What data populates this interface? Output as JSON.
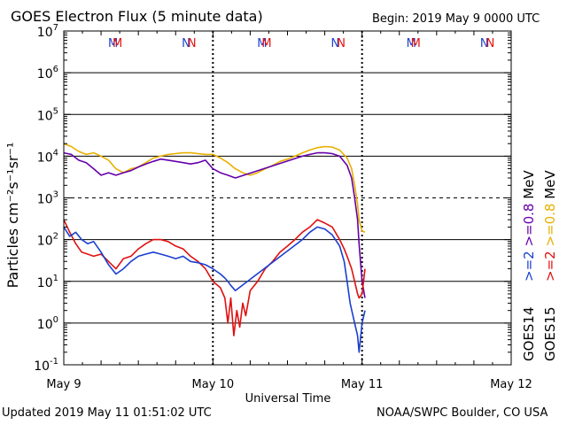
{
  "header": {
    "title": "GOES Electron Flux (5 minute data)",
    "begin": "Begin: 2019 May 9 0000 UTC"
  },
  "footer": {
    "updated": "Updated 2019 May 11 01:51:02 UTC",
    "credit": "NOAA/SWPC Boulder, CO USA"
  },
  "colors": {
    "goes14_08": "#6600aa",
    "goes15_08": "#e8b000",
    "goes14_2": "#1a3fd0",
    "goes15_2": "#e01010"
  },
  "chart_data": {
    "type": "line",
    "xlabel": "Universal Time",
    "ylabel": "Particles cm⁻²s⁻¹sr⁻¹",
    "x_unit": "days since 2019 May 9 0000 UTC",
    "xlim": [
      0,
      3.0
    ],
    "ylim": [
      0.1,
      10000000
    ],
    "yscale": "log",
    "grid": true,
    "x_ticks": [
      {
        "label": "May 9",
        "x": 0
      },
      {
        "label": "May 10",
        "x": 1
      },
      {
        "label": "May 11",
        "x": 2
      },
      {
        "label": "May 12",
        "x": 3
      }
    ],
    "y_ticks": [
      {
        "base": "10",
        "exp": "-1",
        "value": 0.1
      },
      {
        "base": "10",
        "exp": "0",
        "value": 1
      },
      {
        "base": "10",
        "exp": "1",
        "value": 10
      },
      {
        "base": "10",
        "exp": "2",
        "value": 100
      },
      {
        "base": "10",
        "exp": "3",
        "value": 1000
      },
      {
        "base": "10",
        "exp": "4",
        "value": 10000
      },
      {
        "base": "10",
        "exp": "5",
        "value": 100000
      },
      {
        "base": "10",
        "exp": "6",
        "value": 1000000
      },
      {
        "base": "10",
        "exp": "7",
        "value": 10000000
      }
    ],
    "threshold_line": 1000,
    "day_markers": [
      {
        "x": 0.33,
        "label": "M",
        "series": "GOES14"
      },
      {
        "x": 0.36,
        "label": "M",
        "series": "GOES15"
      },
      {
        "x": 0.82,
        "label": "N",
        "series": "GOES14"
      },
      {
        "x": 0.86,
        "label": "N",
        "series": "GOES15"
      },
      {
        "x": 1.33,
        "label": "M",
        "series": "GOES14"
      },
      {
        "x": 1.36,
        "label": "M",
        "series": "GOES15"
      },
      {
        "x": 1.82,
        "label": "N",
        "series": "GOES14"
      },
      {
        "x": 1.86,
        "label": "N",
        "series": "GOES15"
      },
      {
        "x": 2.33,
        "label": "M",
        "series": "GOES14"
      },
      {
        "x": 2.36,
        "label": "M",
        "series": "GOES15"
      },
      {
        "x": 2.82,
        "label": "N",
        "series": "GOES14"
      },
      {
        "x": 2.86,
        "label": "N",
        "series": "GOES15"
      }
    ],
    "legend": {
      "placement": "right",
      "groups": [
        {
          "sat": "GOES14",
          "items": [
            {
              "text": ">=2",
              "series": "goes14_2"
            },
            {
              "text": ">=0.8",
              "series": "goes14_08"
            }
          ]
        },
        {
          "sat": "GOES15",
          "items": [
            {
              "text": ">=2",
              "series": "goes15_2"
            },
            {
              "text": ">=0.8",
              "series": "goes15_08"
            }
          ]
        }
      ],
      "unit": "MeV"
    },
    "series": [
      {
        "name": "GOES15 >=0.8 MeV",
        "key": "goes15_08",
        "x": [
          0,
          0.05,
          0.1,
          0.15,
          0.2,
          0.25,
          0.3,
          0.35,
          0.4,
          0.45,
          0.5,
          0.55,
          0.6,
          0.65,
          0.7,
          0.75,
          0.8,
          0.85,
          0.9,
          0.95,
          1.0,
          1.05,
          1.1,
          1.15,
          1.2,
          1.25,
          1.3,
          1.35,
          1.4,
          1.45,
          1.5,
          1.55,
          1.6,
          1.65,
          1.7,
          1.75,
          1.8,
          1.85,
          1.9,
          1.93,
          1.95,
          1.97,
          1.98,
          2.0,
          2.02
        ],
        "y": [
          20000,
          17000,
          13000,
          11000,
          12000,
          10000,
          8000,
          5000,
          4000,
          5000,
          5500,
          7000,
          9000,
          10000,
          11000,
          11500,
          12000,
          12000,
          11500,
          11000,
          11000,
          9000,
          7000,
          5000,
          4000,
          3500,
          4000,
          5000,
          6000,
          7500,
          8500,
          10000,
          12000,
          14000,
          16000,
          17000,
          16500,
          14000,
          9000,
          5000,
          2000,
          700,
          300,
          160,
          150
        ]
      },
      {
        "name": "GOES14 >=0.8 MeV",
        "key": "goes14_08",
        "x": [
          0,
          0.05,
          0.1,
          0.15,
          0.2,
          0.25,
          0.3,
          0.35,
          0.4,
          0.45,
          0.5,
          0.55,
          0.6,
          0.65,
          0.7,
          0.75,
          0.8,
          0.85,
          0.9,
          0.95,
          1.0,
          1.05,
          1.1,
          1.15,
          1.6,
          1.65,
          1.7,
          1.75,
          1.8,
          1.85,
          1.9,
          1.93,
          1.95,
          1.97,
          1.98,
          2.0,
          2.02
        ],
        "y": [
          12000,
          11000,
          8000,
          7000,
          5000,
          3500,
          4000,
          3500,
          4000,
          4500,
          5500,
          6500,
          7500,
          8500,
          8000,
          7500,
          7000,
          6500,
          7000,
          8000,
          5000,
          4000,
          3500,
          3000,
          10000,
          11000,
          12000,
          12000,
          11500,
          10000,
          6000,
          3000,
          1000,
          300,
          80,
          10,
          4
        ]
      },
      {
        "name": "GOES15 >=2 MeV",
        "key": "goes15_2",
        "x": [
          0,
          0.04,
          0.08,
          0.12,
          0.16,
          0.2,
          0.25,
          0.3,
          0.35,
          0.4,
          0.45,
          0.5,
          0.55,
          0.6,
          0.65,
          0.7,
          0.75,
          0.8,
          0.85,
          0.9,
          0.95,
          1.0,
          1.05,
          1.08,
          1.1,
          1.12,
          1.14,
          1.16,
          1.18,
          1.2,
          1.22,
          1.25,
          1.3,
          1.35,
          1.4,
          1.45,
          1.5,
          1.55,
          1.6,
          1.65,
          1.7,
          1.75,
          1.8,
          1.85,
          1.88,
          1.9,
          1.93,
          1.95,
          1.97,
          1.98,
          2.0,
          2.02
        ],
        "y": [
          300,
          150,
          80,
          50,
          45,
          40,
          45,
          30,
          20,
          35,
          40,
          60,
          80,
          100,
          100,
          90,
          70,
          60,
          40,
          30,
          20,
          10,
          7,
          4,
          1,
          4,
          0.5,
          2,
          0.8,
          3,
          1.5,
          6,
          10,
          20,
          30,
          50,
          70,
          100,
          150,
          200,
          300,
          250,
          200,
          100,
          60,
          40,
          20,
          10,
          5,
          4,
          5,
          20
        ]
      },
      {
        "name": "GOES14 >=2 MeV",
        "key": "goes14_2",
        "x": [
          0,
          0.04,
          0.08,
          0.12,
          0.16,
          0.2,
          0.25,
          0.3,
          0.35,
          0.4,
          0.45,
          0.5,
          0.55,
          0.6,
          0.65,
          0.7,
          0.75,
          0.8,
          0.85,
          0.9,
          0.95,
          1.0,
          1.05,
          1.08,
          1.1,
          1.12,
          1.15,
          1.6,
          1.65,
          1.7,
          1.75,
          1.8,
          1.85,
          1.88,
          1.9,
          1.92,
          1.95,
          1.97,
          1.98,
          2.0,
          2.02
        ],
        "y": [
          200,
          120,
          150,
          100,
          80,
          90,
          50,
          25,
          15,
          20,
          30,
          40,
          45,
          50,
          45,
          40,
          35,
          40,
          30,
          28,
          25,
          20,
          15,
          12,
          10,
          8,
          6,
          100,
          150,
          200,
          180,
          130,
          70,
          30,
          10,
          3,
          1,
          0.5,
          0.2,
          1,
          2
        ]
      }
    ]
  }
}
